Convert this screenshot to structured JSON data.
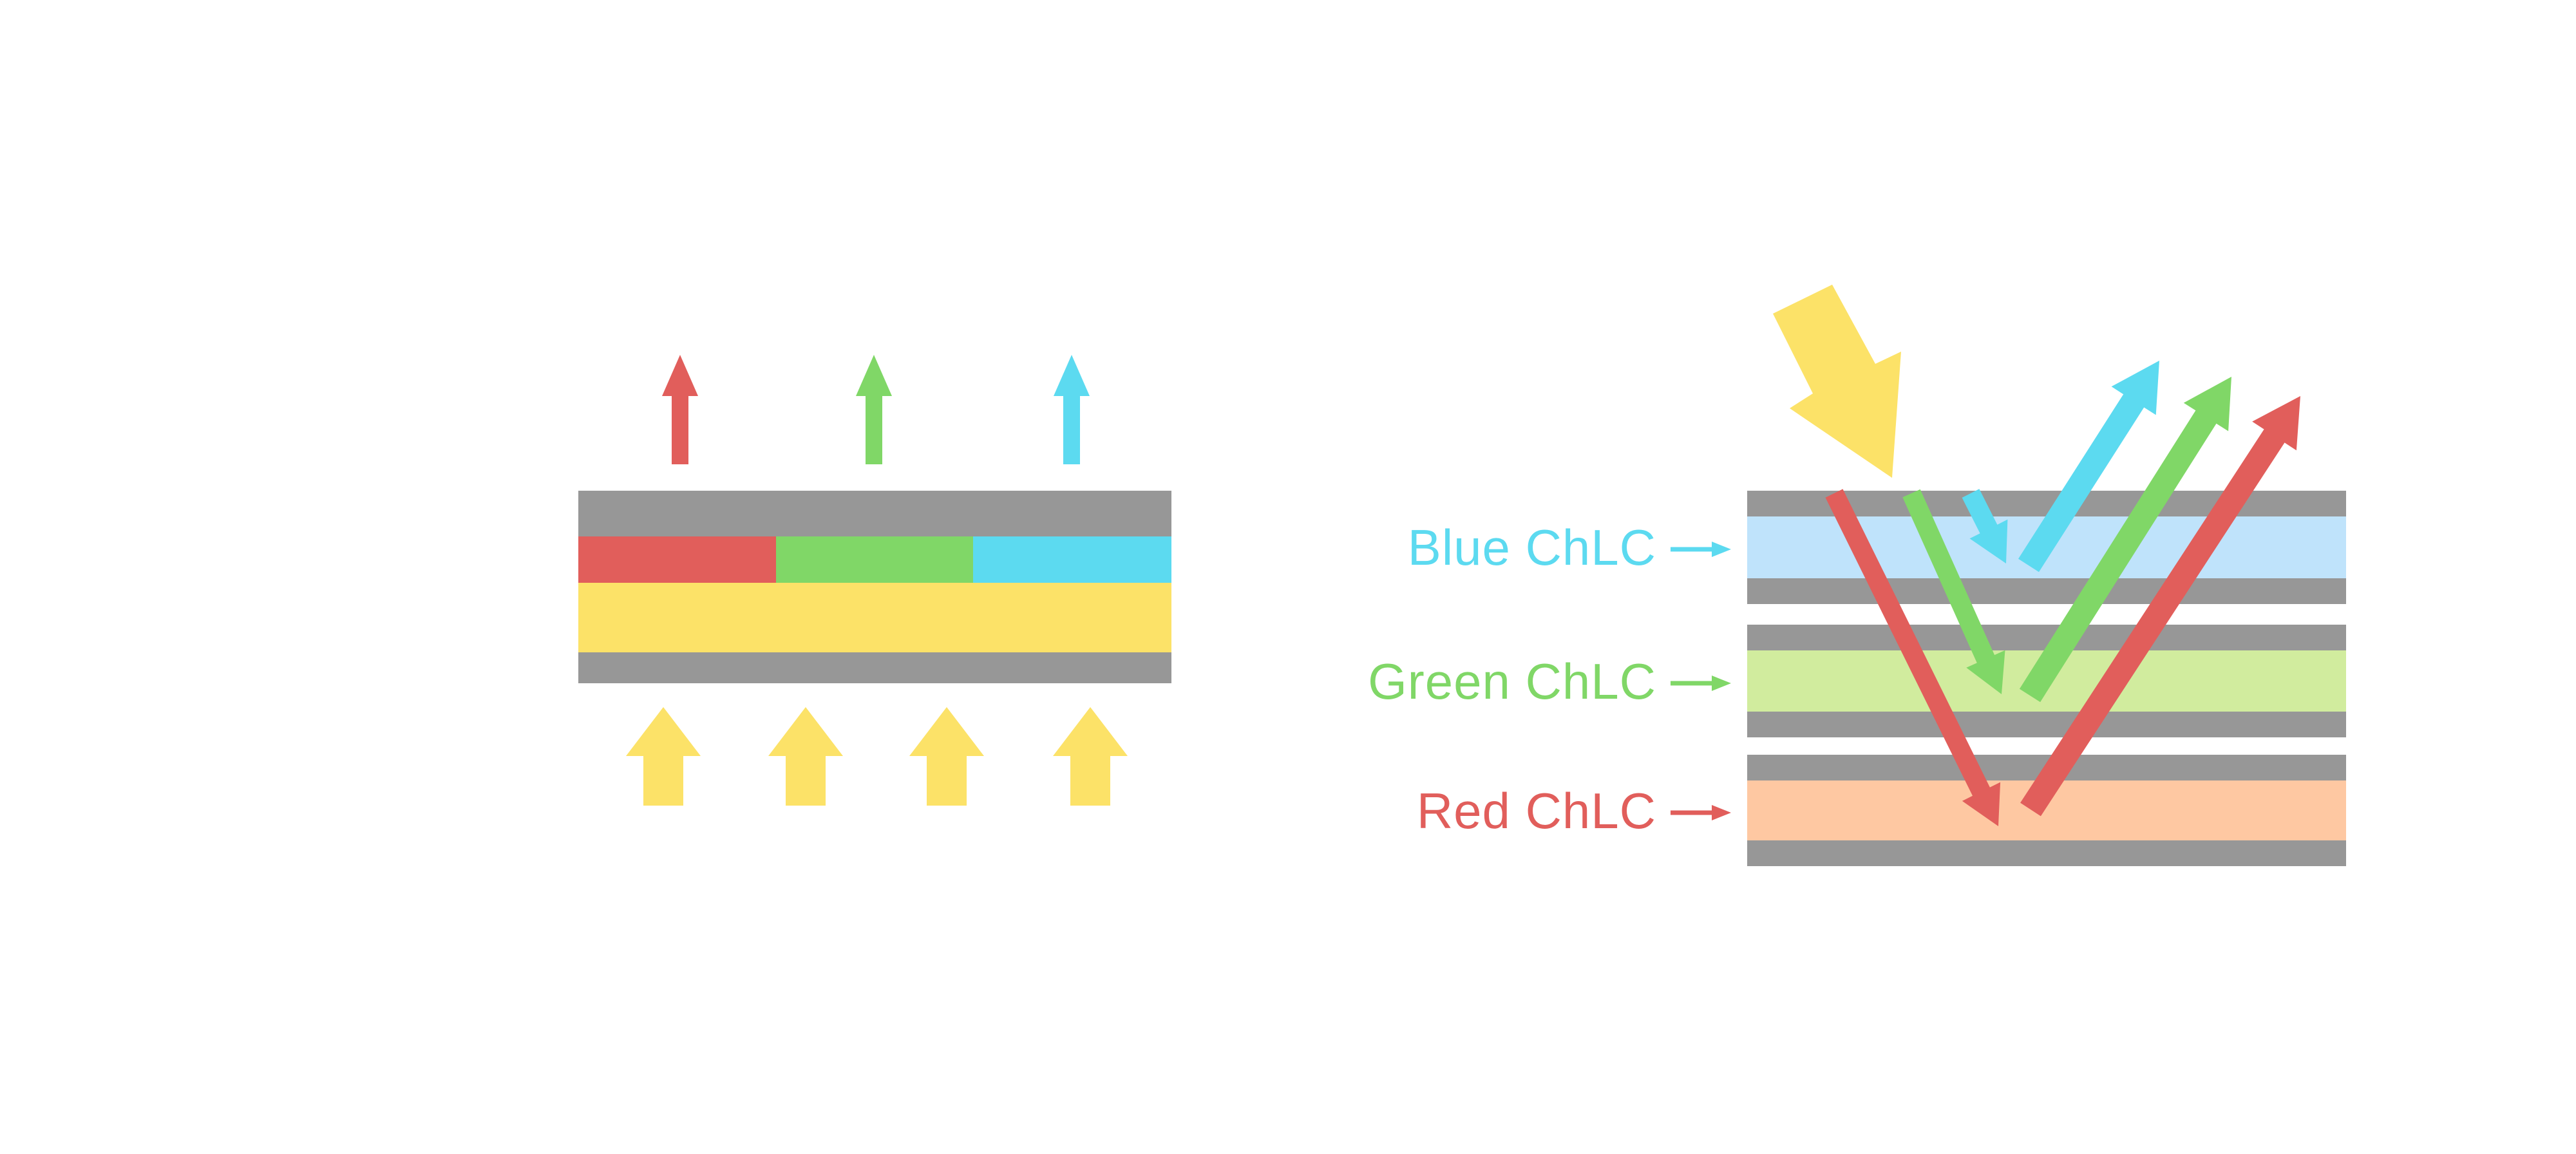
{
  "colors": {
    "red": "#E15E5B",
    "green": "#80D767",
    "cyan": "#5CDAF0",
    "yellow": "#FCE268",
    "gray": "#979797",
    "light_blue": "#BFE3FB",
    "light_green": "#D1EC9E",
    "peach": "#FEC8A2",
    "background": "#FFFFFF"
  },
  "left_diagram": {
    "pixel_segment_colors": [
      "red",
      "green",
      "cyan"
    ],
    "emitted_arrow_colors": [
      "red",
      "green",
      "cyan"
    ],
    "backlight_arrow_color": "yellow",
    "backlight_arrow_count": 4
  },
  "right_diagram": {
    "labels": [
      {
        "text": "Blue ChLC",
        "color": "cyan"
      },
      {
        "text": "Green ChLC",
        "color": "green"
      },
      {
        "text": "Red ChLC",
        "color": "red"
      }
    ],
    "stack_layer_colors": [
      "light_blue",
      "light_green",
      "peach"
    ],
    "incident_arrow_color": "yellow",
    "transmitted_ray_colors": [
      "red",
      "green",
      "cyan"
    ],
    "reflected_ray_colors": [
      "cyan",
      "green",
      "red"
    ]
  }
}
